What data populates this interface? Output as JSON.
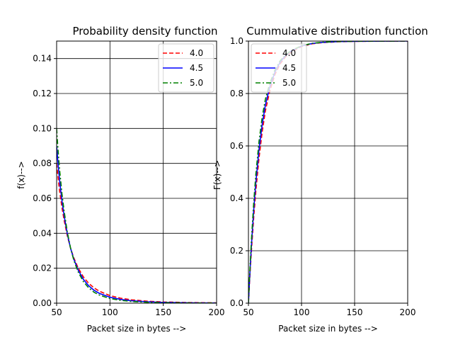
{
  "chart_data": [
    {
      "type": "line",
      "title": "Probability density function",
      "xlabel": "Packet size in bytes -->",
      "ylabel": "f(x)-->",
      "xlim": [
        50,
        200
      ],
      "ylim": [
        0,
        0.15
      ],
      "xticks": [
        50,
        100,
        150,
        200
      ],
      "xtick_labels": [
        "50",
        "100",
        "150",
        "200"
      ],
      "yticks": [
        0,
        0.02,
        0.04,
        0.06,
        0.08,
        0.1,
        0.12,
        0.14
      ],
      "ytick_labels": [
        "0.00",
        "0.02",
        "0.04",
        "0.06",
        "0.08",
        "0.10",
        "0.12",
        "0.14"
      ],
      "grid": true,
      "legend": "top-right",
      "x": [
        50,
        51,
        52,
        53,
        55,
        57,
        60,
        63,
        66,
        70,
        75,
        80,
        85,
        90,
        100,
        110,
        120,
        135,
        150,
        175,
        200
      ],
      "series": [
        {
          "name": "4.0",
          "color": "#ff0000",
          "dash": "dashed",
          "values": [
            0.08,
            0.0739,
            0.0683,
            0.0633,
            0.0547,
            0.0476,
            0.0386,
            0.0316,
            0.0261,
            0.0204,
            0.0151,
            0.0114,
            0.00878,
            0.00686,
            0.00433,
            0.00284,
            0.00193,
            0.00113,
            0.0007,
            0.00034,
            0.00018
          ]
        },
        {
          "name": "4.5",
          "color": "#0000ff",
          "dash": "solid",
          "values": [
            0.09,
            0.0822,
            0.0753,
            0.0691,
            0.0586,
            0.0501,
            0.0397,
            0.0316,
            0.0254,
            0.0192,
            0.0137,
            0.00997,
            0.00743,
            0.00564,
            0.00339,
            0.00214,
            0.0014,
            0.00077,
            0.00045,
            0.0002,
            0.0001
          ]
        },
        {
          "name": "5.0",
          "color": "#008000",
          "dash": "dashdot",
          "values": [
            0.1,
            0.0906,
            0.0823,
            0.075,
            0.0627,
            0.0528,
            0.0408,
            0.0317,
            0.0248,
            0.0181,
            0.0124,
            0.00878,
            0.00631,
            0.00465,
            0.00265,
            0.0016,
            0.00101,
            0.00052,
            0.00029,
            0.00012,
            5e-05
          ]
        }
      ]
    },
    {
      "type": "line",
      "title": "Cummulative distribution function",
      "xlabel": "Packet size in bytes -->",
      "ylabel": "F(x)-->",
      "xlim": [
        50,
        200
      ],
      "ylim": [
        0,
        1.0
      ],
      "xticks": [
        50,
        100,
        150,
        200
      ],
      "xtick_labels": [
        "50",
        "100",
        "150",
        "200"
      ],
      "yticks": [
        0,
        0.2,
        0.4,
        0.6,
        0.8,
        1.0
      ],
      "ytick_labels": [
        "0.0",
        "0.2",
        "0.4",
        "0.6",
        "0.8",
        "1.0"
      ],
      "grid": true,
      "legend": "top-left",
      "x": [
        50,
        51,
        52,
        53,
        55,
        57,
        60,
        63,
        66,
        70,
        75,
        80,
        85,
        90,
        100,
        110,
        120,
        135,
        150,
        175,
        200
      ],
      "series": [
        {
          "name": "4.0",
          "color": "#ff0000",
          "dash": "dashed",
          "values": [
            0.0,
            0.0762,
            0.1466,
            0.2118,
            0.3284,
            0.4291,
            0.5545,
            0.6547,
            0.7345,
            0.8078,
            0.8725,
            0.9136,
            0.9401,
            0.9577,
            0.9792,
            0.9896,
            0.9943,
            0.9974,
            0.9988,
            0.9996,
            0.9999
          ]
        },
        {
          "name": "4.5",
          "color": "#0000ff",
          "dash": "solid",
          "values": [
            0.0,
            0.0853,
            0.1627,
            0.2336,
            0.3574,
            0.4621,
            0.5877,
            0.6834,
            0.757,
            0.8232,
            0.8824,
            0.9205,
            0.9451,
            0.9616,
            0.9813,
            0.9909,
            0.9952,
            0.998,
            0.9991,
            0.9998,
            1.0
          ]
        },
        {
          "name": "5.0",
          "color": "#008000",
          "dash": "dashdot",
          "values": [
            0.0,
            0.0945,
            0.1785,
            0.2547,
            0.3855,
            0.4937,
            0.619,
            0.7119,
            0.779,
            0.8373,
            0.8905,
            0.9258,
            0.9482,
            0.9634,
            0.9823,
            0.9914,
            0.9957,
            0.9983,
            0.9993,
            0.9999,
            1.0
          ]
        }
      ]
    }
  ]
}
